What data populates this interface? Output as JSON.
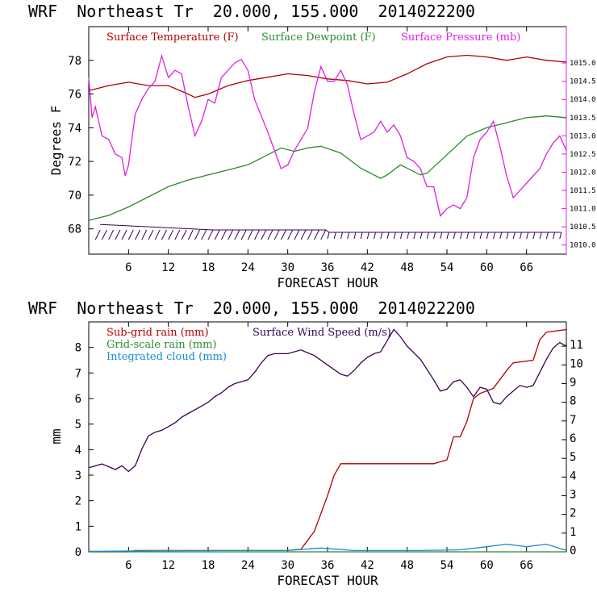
{
  "colors": {
    "temperature": "#b00000",
    "dewpoint": "#2a8a2a",
    "pressure": "#e020e0",
    "subgrid_rain": "#b00000",
    "gridscale_rain": "#2a8a2a",
    "cloud": "#1a8ad0",
    "wind": "#3a0050",
    "barb": "#3a0050"
  },
  "top": {
    "header": "WRF  Northeast Tr  20.000, 155.000  2014022200",
    "xlabel": "FORECAST HOUR",
    "ylabel": "Degrees F",
    "legend": {
      "temperature": "Surface Temperature (F)",
      "dewpoint": "Surface Dewpoint (F)",
      "pressure": "Surface Pressure (mb)"
    }
  },
  "bottom": {
    "header": "WRF  Northeast Tr  20.000, 155.000  2014022200",
    "xlabel": "FORECAST HOUR",
    "ylabel": "mm",
    "legend": {
      "subgrid": "Sub-grid rain (mm)",
      "wind": "Surface Wind Speed (m/s)",
      "gridscale": "Grid-scale rain (mm)",
      "cloud": "Integrated cloud (mm)"
    }
  },
  "chart_data": [
    {
      "type": "line",
      "xlim": [
        0,
        72
      ],
      "x_ticks": [
        "6",
        "12",
        "18",
        "24",
        "30",
        "36",
        "42",
        "48",
        "54",
        "60",
        "66"
      ],
      "ylim": [
        66.5,
        80
      ],
      "y_ticks": [
        "68",
        "70",
        "72",
        "74",
        "76",
        "78"
      ],
      "y2lim": [
        1009.75,
        1016.0
      ],
      "y2_ticks": [
        "1010.0",
        "1010.5",
        "1011.0",
        "1011.5",
        "1012.0",
        "1012.5",
        "1013.0",
        "1013.5",
        "1014.0",
        "1014.5",
        "1015.0"
      ],
      "series": [
        {
          "name": "Surface Temperature (F)",
          "axis": "left",
          "points": [
            [
              0,
              76.2
            ],
            [
              3,
              76.5
            ],
            [
              6,
              76.7
            ],
            [
              9,
              76.5
            ],
            [
              12,
              76.5
            ],
            [
              15,
              76.0
            ],
            [
              16,
              75.8
            ],
            [
              18,
              76.0
            ],
            [
              21,
              76.5
            ],
            [
              24,
              76.8
            ],
            [
              27,
              77.0
            ],
            [
              30,
              77.2
            ],
            [
              33,
              77.1
            ],
            [
              36,
              76.9
            ],
            [
              39,
              76.8
            ],
            [
              42,
              76.6
            ],
            [
              45,
              76.7
            ],
            [
              48,
              77.2
            ],
            [
              51,
              77.8
            ],
            [
              54,
              78.2
            ],
            [
              57,
              78.3
            ],
            [
              60,
              78.2
            ],
            [
              63,
              78.0
            ],
            [
              66,
              78.2
            ],
            [
              69,
              78.0
            ],
            [
              72,
              77.9
            ]
          ]
        },
        {
          "name": "Surface Dewpoint (F)",
          "axis": "left",
          "points": [
            [
              0,
              68.5
            ],
            [
              3,
              68.8
            ],
            [
              6,
              69.3
            ],
            [
              9,
              69.9
            ],
            [
              12,
              70.5
            ],
            [
              15,
              70.9
            ],
            [
              18,
              71.2
            ],
            [
              21,
              71.5
            ],
            [
              24,
              71.8
            ],
            [
              27,
              72.4
            ],
            [
              29,
              72.8
            ],
            [
              31,
              72.6
            ],
            [
              33,
              72.8
            ],
            [
              35,
              72.9
            ],
            [
              38,
              72.5
            ],
            [
              41,
              71.6
            ],
            [
              44,
              71.0
            ],
            [
              45,
              71.2
            ],
            [
              47,
              71.8
            ],
            [
              50,
              71.2
            ],
            [
              51,
              71.3
            ],
            [
              54,
              72.4
            ],
            [
              57,
              73.5
            ],
            [
              60,
              74.0
            ],
            [
              63,
              74.3
            ],
            [
              66,
              74.6
            ],
            [
              69,
              74.7
            ],
            [
              72,
              74.6
            ]
          ]
        },
        {
          "name": "Surface Pressure (mb)",
          "axis": "right",
          "points": [
            [
              0,
              1014.6
            ],
            [
              0.5,
              1013.5
            ],
            [
              1,
              1013.8
            ],
            [
              2,
              1013.0
            ],
            [
              3,
              1012.9
            ],
            [
              4,
              1012.5
            ],
            [
              5,
              1012.4
            ],
            [
              5.5,
              1011.9
            ],
            [
              6,
              1012.2
            ],
            [
              7,
              1013.6
            ],
            [
              8,
              1014.0
            ],
            [
              9,
              1014.3
            ],
            [
              10,
              1014.5
            ],
            [
              11,
              1015.2
            ],
            [
              12,
              1014.6
            ],
            [
              13,
              1014.8
            ],
            [
              14,
              1014.7
            ],
            [
              15,
              1013.8
            ],
            [
              16,
              1013.0
            ],
            [
              17,
              1013.4
            ],
            [
              18,
              1014.0
            ],
            [
              19,
              1013.9
            ],
            [
              20,
              1014.6
            ],
            [
              22,
              1015.0
            ],
            [
              23,
              1015.1
            ],
            [
              24,
              1014.8
            ],
            [
              25,
              1014.0
            ],
            [
              27,
              1013.1
            ],
            [
              28,
              1012.6
            ],
            [
              29,
              1012.1
            ],
            [
              30,
              1012.2
            ],
            [
              31,
              1012.6
            ],
            [
              32,
              1012.9
            ],
            [
              33,
              1013.2
            ],
            [
              34,
              1014.2
            ],
            [
              35,
              1014.9
            ],
            [
              36,
              1014.5
            ],
            [
              37,
              1014.5
            ],
            [
              38,
              1014.8
            ],
            [
              39,
              1014.4
            ],
            [
              40,
              1013.6
            ],
            [
              41,
              1012.9
            ],
            [
              42,
              1013.0
            ],
            [
              43,
              1013.1
            ],
            [
              44,
              1013.4
            ],
            [
              45,
              1013.1
            ],
            [
              46,
              1013.3
            ],
            [
              47,
              1013.0
            ],
            [
              48,
              1012.4
            ],
            [
              49,
              1012.3
            ],
            [
              50,
              1012.1
            ],
            [
              51,
              1011.6
            ],
            [
              52,
              1011.6
            ],
            [
              53,
              1010.8
            ],
            [
              54,
              1011.0
            ],
            [
              55,
              1011.1
            ],
            [
              56,
              1011.0
            ],
            [
              57,
              1011.3
            ],
            [
              58,
              1012.4
            ],
            [
              59,
              1012.9
            ],
            [
              60,
              1013.1
            ],
            [
              61,
              1013.4
            ],
            [
              62,
              1012.7
            ],
            [
              63,
              1011.9
            ],
            [
              64,
              1011.3
            ],
            [
              65,
              1011.5
            ],
            [
              66,
              1011.7
            ],
            [
              67,
              1011.9
            ],
            [
              68,
              1012.1
            ],
            [
              69,
              1012.5
            ],
            [
              70,
              1012.8
            ],
            [
              71,
              1013.0
            ],
            [
              72,
              1012.6
            ]
          ]
        }
      ]
    },
    {
      "type": "line",
      "xlim": [
        0,
        72
      ],
      "x_ticks": [
        "6",
        "12",
        "18",
        "24",
        "30",
        "36",
        "42",
        "48",
        "54",
        "60",
        "66"
      ],
      "ylim": [
        0,
        9
      ],
      "y_ticks": [
        "0",
        "1",
        "2",
        "3",
        "4",
        "5",
        "6",
        "7",
        "8"
      ],
      "y2lim": [
        0,
        12.3
      ],
      "y2_ticks": [
        "0",
        "1",
        "2",
        "3",
        "4",
        "5",
        "6",
        "7",
        "8",
        "9",
        "10",
        "11"
      ],
      "series": [
        {
          "name": "Sub-grid rain (mm)",
          "axis": "left",
          "points": [
            [
              0,
              0.0
            ],
            [
              6,
              0.0
            ],
            [
              7,
              0.05
            ],
            [
              30,
              0.05
            ],
            [
              32,
              0.1
            ],
            [
              34,
              0.8
            ],
            [
              36,
              2.2
            ],
            [
              37,
              3.0
            ],
            [
              38,
              3.45
            ],
            [
              52,
              3.45
            ],
            [
              54,
              3.6
            ],
            [
              55,
              4.5
            ],
            [
              56,
              4.5
            ],
            [
              57,
              5.1
            ],
            [
              58,
              6.0
            ],
            [
              59,
              6.2
            ],
            [
              60,
              6.3
            ],
            [
              61,
              6.4
            ],
            [
              63,
              7.1
            ],
            [
              64,
              7.4
            ],
            [
              67,
              7.5
            ],
            [
              68,
              8.3
            ],
            [
              69,
              8.6
            ],
            [
              72,
              8.7
            ]
          ]
        },
        {
          "name": "Grid-scale rain (mm)",
          "axis": "left",
          "points": [
            [
              0,
              0.0
            ],
            [
              72,
              0.0
            ]
          ]
        },
        {
          "name": "Integrated cloud (mm)",
          "axis": "left",
          "points": [
            [
              0,
              0.02
            ],
            [
              10,
              0.04
            ],
            [
              20,
              0.05
            ],
            [
              30,
              0.05
            ],
            [
              35,
              0.15
            ],
            [
              40,
              0.05
            ],
            [
              50,
              0.05
            ],
            [
              56,
              0.08
            ],
            [
              60,
              0.2
            ],
            [
              63,
              0.3
            ],
            [
              66,
              0.2
            ],
            [
              69,
              0.3
            ],
            [
              72,
              0.05
            ]
          ]
        },
        {
          "name": "Surface Wind Speed (m/s)",
          "axis": "right",
          "points": [
            [
              0,
              4.5
            ],
            [
              2,
              4.7
            ],
            [
              4,
              4.4
            ],
            [
              5,
              4.6
            ],
            [
              6,
              4.3
            ],
            [
              7,
              4.6
            ],
            [
              8,
              5.5
            ],
            [
              9,
              6.2
            ],
            [
              10,
              6.4
            ],
            [
              11,
              6.5
            ],
            [
              12,
              6.7
            ],
            [
              13,
              6.9
            ],
            [
              14,
              7.2
            ],
            [
              15,
              7.4
            ],
            [
              16,
              7.6
            ],
            [
              17,
              7.8
            ],
            [
              18,
              8.0
            ],
            [
              19,
              8.3
            ],
            [
              20,
              8.5
            ],
            [
              21,
              8.8
            ],
            [
              22,
              9.0
            ],
            [
              23,
              9.1
            ],
            [
              24,
              9.2
            ],
            [
              25,
              9.6
            ],
            [
              26,
              10.1
            ],
            [
              27,
              10.5
            ],
            [
              28,
              10.6
            ],
            [
              30,
              10.6
            ],
            [
              32,
              10.8
            ],
            [
              34,
              10.5
            ],
            [
              36,
              10.0
            ],
            [
              38,
              9.5
            ],
            [
              39,
              9.4
            ],
            [
              40,
              9.7
            ],
            [
              41,
              10.1
            ],
            [
              42,
              10.4
            ],
            [
              43,
              10.6
            ],
            [
              44,
              10.7
            ],
            [
              45,
              11.3
            ],
            [
              46,
              11.9
            ],
            [
              47,
              11.5
            ],
            [
              48,
              11.0
            ],
            [
              50,
              10.3
            ],
            [
              52,
              9.2
            ],
            [
              53,
              8.6
            ],
            [
              54,
              8.7
            ],
            [
              55,
              9.1
            ],
            [
              56,
              9.2
            ],
            [
              57,
              8.8
            ],
            [
              58,
              8.3
            ],
            [
              59,
              8.8
            ],
            [
              60,
              8.7
            ],
            [
              61,
              8.0
            ],
            [
              62,
              7.9
            ],
            [
              63,
              8.3
            ],
            [
              64,
              8.6
            ],
            [
              65,
              8.9
            ],
            [
              66,
              8.8
            ],
            [
              67,
              8.9
            ],
            [
              68,
              9.6
            ],
            [
              69,
              10.3
            ],
            [
              70,
              10.9
            ],
            [
              71,
              11.2
            ],
            [
              72,
              11.0
            ]
          ]
        }
      ]
    }
  ]
}
